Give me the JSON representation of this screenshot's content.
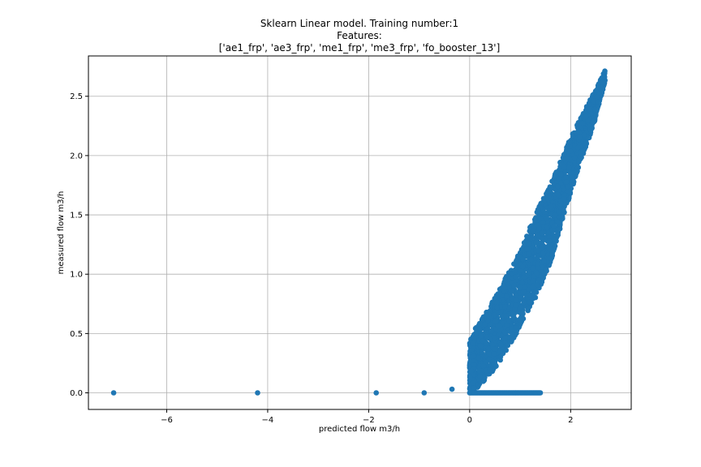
{
  "chart_data": {
    "type": "scatter",
    "title_lines": [
      "Sklearn Linear model. Training number:1",
      "Features:",
      "['ae1_frp', 'ae3_frp', 'me1_frp', 'me3_frp', 'fo_booster_13']"
    ],
    "xlabel": "predicted flow m3/h",
    "ylabel": "measured flow m3/h",
    "xlim": [
      -7.55,
      3.2
    ],
    "ylim": [
      -0.14,
      2.84
    ],
    "xticks": [
      -6,
      -4,
      -2,
      0,
      2
    ],
    "xtick_labels": [
      "−6",
      "−4",
      "−2",
      "0",
      "2"
    ],
    "yticks": [
      0.0,
      0.5,
      1.0,
      1.5,
      2.0,
      2.5
    ],
    "ytick_labels": [
      "0.0",
      "0.5",
      "1.0",
      "1.5",
      "2.0",
      "2.5"
    ],
    "grid": true,
    "marker_color": "#1f77b4",
    "outliers": [
      {
        "x": -7.05,
        "y": 0.0
      },
      {
        "x": -4.2,
        "y": 0.0
      },
      {
        "x": -1.85,
        "y": 0.0
      },
      {
        "x": -0.9,
        "y": 0.0
      },
      {
        "x": -0.35,
        "y": 0.03
      }
    ],
    "zero_band": {
      "x_start": 0.0,
      "x_end": 1.42,
      "y": 0.0
    },
    "upper_edge": [
      [
        0.0,
        0.47
      ],
      [
        0.5,
        0.8
      ],
      [
        1.0,
        1.2
      ],
      [
        1.3,
        1.5
      ],
      [
        1.7,
        1.85
      ],
      [
        2.0,
        2.15
      ],
      [
        2.3,
        2.4
      ],
      [
        2.55,
        2.6
      ],
      [
        2.68,
        2.72
      ]
    ],
    "lower_edge": [
      [
        0.1,
        0.02
      ],
      [
        0.5,
        0.2
      ],
      [
        1.0,
        0.55
      ],
      [
        1.3,
        0.8
      ],
      [
        1.6,
        1.1
      ],
      [
        1.9,
        1.55
      ],
      [
        2.2,
        1.95
      ],
      [
        2.45,
        2.25
      ],
      [
        2.6,
        2.5
      ],
      [
        2.68,
        2.62
      ]
    ]
  }
}
